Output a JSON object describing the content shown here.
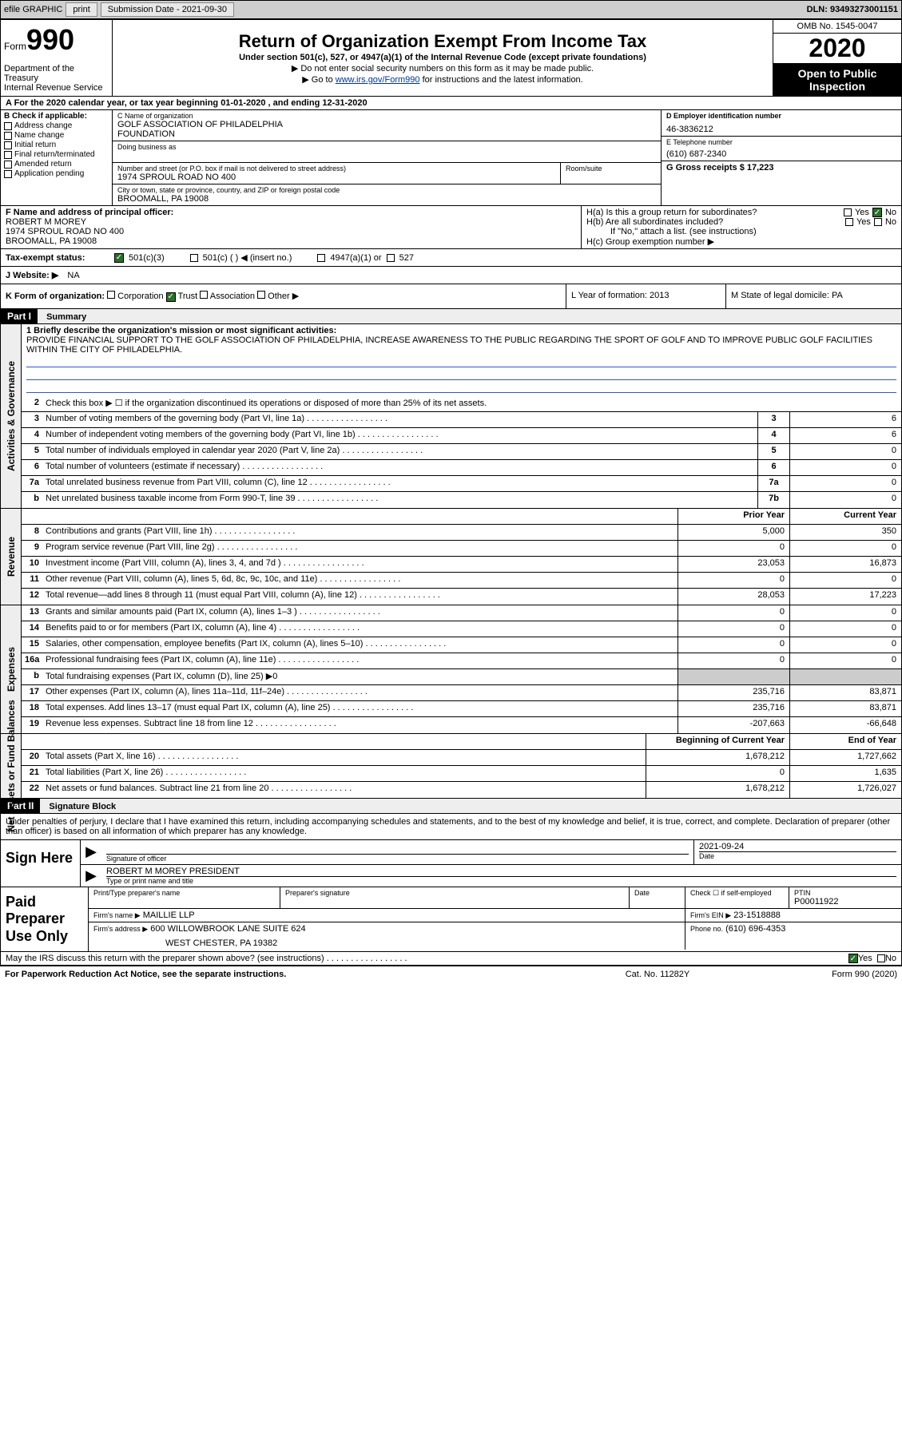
{
  "topbar": {
    "efile_label": "efile GRAPHIC",
    "print_btn": "print",
    "submission_label": "Submission Date - 2021-09-30",
    "dln_label": "DLN: 93493273001151"
  },
  "header": {
    "form_prefix": "Form",
    "form_number": "990",
    "dept": "Department of the Treasury",
    "irs": "Internal Revenue Service",
    "title": "Return of Organization Exempt From Income Tax",
    "subtitle": "Under section 501(c), 527, or 4947(a)(1) of the Internal Revenue Code (except private foundations)",
    "hint1": "▶ Do not enter social security numbers on this form as it may be made public.",
    "hint2_pre": "▶ Go to ",
    "hint2_link": "www.irs.gov/Form990",
    "hint2_post": " for instructions and the latest information.",
    "omb": "OMB No. 1545-0047",
    "year": "2020",
    "open_pub1": "Open to Public",
    "open_pub2": "Inspection"
  },
  "row_a": "A For the 2020 calendar year, or tax year beginning 01-01-2020   , and ending 12-31-2020",
  "col_b": {
    "label": "B Check if applicable:",
    "opts": [
      "Address change",
      "Name change",
      "Initial return",
      "Final return/terminated",
      "Amended return",
      "Application pending"
    ]
  },
  "col_c": {
    "name_label": "C Name of organization",
    "name1": "GOLF ASSOCIATION OF PHILADELPHIA",
    "name2": "FOUNDATION",
    "dba_label": "Doing business as",
    "addr_label": "Number and street (or P.O. box if mail is not delivered to street address)",
    "room_label": "Room/suite",
    "addr": "1974 SPROUL ROAD NO 400",
    "city_label": "City or town, state or province, country, and ZIP or foreign postal code",
    "city": "BROOMALL, PA  19008"
  },
  "col_de": {
    "d_label": "D Employer identification number",
    "d_val": "46-3836212",
    "e_label": "E Telephone number",
    "e_val": "(610) 687-2340",
    "g_label": "G Gross receipts $ 17,223"
  },
  "row_f": {
    "f_label": "F  Name and address of principal officer:",
    "f_name": "ROBERT M MOREY",
    "f_addr1": "1974 SPROUL ROAD NO 400",
    "f_addr2": "BROOMALL, PA  19008",
    "ha": "H(a)  Is this a group return for subordinates?",
    "hb": "H(b)  Are all subordinates included?",
    "hb_note": "If \"No,\" attach a list. (see instructions)",
    "hc": "H(c)  Group exemption number ▶",
    "yes": "Yes",
    "no": "No"
  },
  "row_i": {
    "label": "Tax-exempt status:",
    "o1": "501(c)(3)",
    "o2": "501(c) (  ) ◀ (insert no.)",
    "o3": "4947(a)(1) or",
    "o4": "527"
  },
  "row_j": {
    "label": "J  Website: ▶",
    "val": "NA"
  },
  "row_k": {
    "k_label": "K Form of organization:",
    "k_opts": [
      "Corporation",
      "Trust",
      "Association",
      "Other ▶"
    ],
    "l_label": "L Year of formation: 2013",
    "m_label": "M State of legal domicile: PA"
  },
  "part1": {
    "hdr": "Part I",
    "title": "Summary"
  },
  "summary": {
    "gov_label": "Activities & Governance",
    "rev_label": "Revenue",
    "exp_label": "Expenses",
    "net_label": "Net Assets or Fund Balances",
    "line1_label": "1  Briefly describe the organization's mission or most significant activities:",
    "mission": "PROVIDE FINANCIAL SUPPORT TO THE GOLF ASSOCIATION OF PHILADELPHIA, INCREASE AWARENESS TO THE PUBLIC REGARDING THE SPORT OF GOLF AND TO IMPROVE PUBLIC GOLF FACILITIES WITHIN THE CITY OF PHILADELPHIA.",
    "line2": "Check this box ▶ ☐  if the organization discontinued its operations or disposed of more than 25% of its net assets.",
    "rows_gov": [
      {
        "n": "3",
        "d": "Number of voting members of the governing body (Part VI, line 1a)",
        "b": "3",
        "v": "6"
      },
      {
        "n": "4",
        "d": "Number of independent voting members of the governing body (Part VI, line 1b)",
        "b": "4",
        "v": "6"
      },
      {
        "n": "5",
        "d": "Total number of individuals employed in calendar year 2020 (Part V, line 2a)",
        "b": "5",
        "v": "0"
      },
      {
        "n": "6",
        "d": "Total number of volunteers (estimate if necessary)",
        "b": "6",
        "v": "0"
      },
      {
        "n": "7a",
        "d": "Total unrelated business revenue from Part VIII, column (C), line 12",
        "b": "7a",
        "v": "0"
      },
      {
        "n": "b",
        "d": "Net unrelated business taxable income from Form 990-T, line 39",
        "b": "7b",
        "v": "0"
      }
    ],
    "prior_hdr": "Prior Year",
    "curr_hdr": "Current Year",
    "rows_rev": [
      {
        "n": "8",
        "d": "Contributions and grants (Part VIII, line 1h)",
        "p": "5,000",
        "c": "350"
      },
      {
        "n": "9",
        "d": "Program service revenue (Part VIII, line 2g)",
        "p": "0",
        "c": "0"
      },
      {
        "n": "10",
        "d": "Investment income (Part VIII, column (A), lines 3, 4, and 7d )",
        "p": "23,053",
        "c": "16,873"
      },
      {
        "n": "11",
        "d": "Other revenue (Part VIII, column (A), lines 5, 6d, 8c, 9c, 10c, and 11e)",
        "p": "0",
        "c": "0"
      },
      {
        "n": "12",
        "d": "Total revenue—add lines 8 through 11 (must equal Part VIII, column (A), line 12)",
        "p": "28,053",
        "c": "17,223"
      }
    ],
    "rows_exp": [
      {
        "n": "13",
        "d": "Grants and similar amounts paid (Part IX, column (A), lines 1–3 )",
        "p": "0",
        "c": "0"
      },
      {
        "n": "14",
        "d": "Benefits paid to or for members (Part IX, column (A), line 4)",
        "p": "0",
        "c": "0"
      },
      {
        "n": "15",
        "d": "Salaries, other compensation, employee benefits (Part IX, column (A), lines 5–10)",
        "p": "0",
        "c": "0"
      },
      {
        "n": "16a",
        "d": "Professional fundraising fees (Part IX, column (A), line 11e)",
        "p": "0",
        "c": "0"
      },
      {
        "n": "b",
        "d": "Total fundraising expenses (Part IX, column (D), line 25) ▶0",
        "p": "",
        "c": "",
        "shade": true
      },
      {
        "n": "17",
        "d": "Other expenses (Part IX, column (A), lines 11a–11d, 11f–24e)",
        "p": "235,716",
        "c": "83,871"
      },
      {
        "n": "18",
        "d": "Total expenses. Add lines 13–17 (must equal Part IX, column (A), line 25)",
        "p": "235,716",
        "c": "83,871"
      },
      {
        "n": "19",
        "d": "Revenue less expenses. Subtract line 18 from line 12",
        "p": "-207,663",
        "c": "-66,648"
      }
    ],
    "begin_hdr": "Beginning of Current Year",
    "end_hdr": "End of Year",
    "rows_net": [
      {
        "n": "20",
        "d": "Total assets (Part X, line 16)",
        "p": "1,678,212",
        "c": "1,727,662"
      },
      {
        "n": "21",
        "d": "Total liabilities (Part X, line 26)",
        "p": "0",
        "c": "1,635"
      },
      {
        "n": "22",
        "d": "Net assets or fund balances. Subtract line 21 from line 20",
        "p": "1,678,212",
        "c": "1,726,027"
      }
    ]
  },
  "part2": {
    "hdr": "Part II",
    "title": "Signature Block"
  },
  "sig": {
    "intro": "Under penalties of perjury, I declare that I have examined this return, including accompanying schedules and statements, and to the best of my knowledge and belief, it is true, correct, and complete. Declaration of preparer (other than officer) is based on all information of which preparer has any knowledge.",
    "sign_here": "Sign Here",
    "sig_officer": "Signature of officer",
    "date_label": "Date",
    "date_val": "2021-09-24",
    "name_title": "ROBERT M MOREY PRESIDENT",
    "type_label": "Type or print name and title"
  },
  "prep": {
    "paid": "Paid Preparer Use Only",
    "print_name_label": "Print/Type preparer's name",
    "prep_sig_label": "Preparer's signature",
    "date_label": "Date",
    "check_label": "Check ☐ if self-employed",
    "ptin_label": "PTIN",
    "ptin_val": "P00011922",
    "firm_name_label": "Firm's name   ▶",
    "firm_name": "MAILLIE LLP",
    "firm_ein_label": "Firm's EIN ▶",
    "firm_ein": "23-1518888",
    "firm_addr_label": "Firm's address ▶",
    "firm_addr1": "600 WILLOWBROOK LANE SUITE 624",
    "firm_addr2": "WEST CHESTER, PA  19382",
    "phone_label": "Phone no.",
    "phone": "(610) 696-4353"
  },
  "footer": {
    "discuss": "May the IRS discuss this return with the preparer shown above? (see instructions)",
    "yes": "Yes",
    "no": "No"
  },
  "bottom": {
    "pra": "For Paperwork Reduction Act Notice, see the separate instructions.",
    "cat": "Cat. No. 11282Y",
    "form": "Form 990 (2020)"
  }
}
